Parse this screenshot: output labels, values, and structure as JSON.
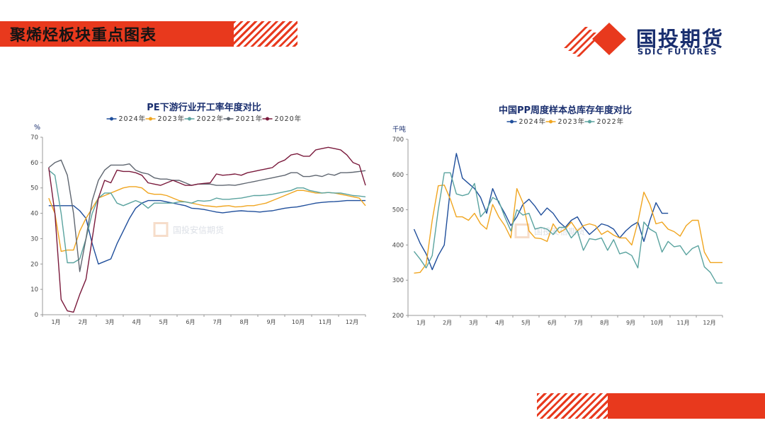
{
  "header": {
    "title": "聚烯烃板块重点图表"
  },
  "logo": {
    "cn": "国投期货",
    "en": "SDIC FUTURES"
  },
  "watermark": {
    "text": "国投安信期货"
  },
  "colors": {
    "accent": "#e8391d",
    "brand": "#1a2f6f"
  },
  "chart_data": [
    {
      "type": "line",
      "title": "PE下游行业开工率年度对比",
      "ylabel": "%",
      "ylim": [
        0,
        70
      ],
      "yticks": [
        0,
        10,
        20,
        30,
        40,
        50,
        60,
        70
      ],
      "xlim": [
        0,
        52
      ],
      "month_labels": [
        "1月",
        "2月",
        "3月",
        "4月",
        "5月",
        "6月",
        "7月",
        "8月",
        "9月",
        "10月",
        "11月",
        "12月"
      ],
      "legend_position": "top-center",
      "grid": false,
      "series": [
        {
          "name": "2024年",
          "color": "#1f4e9b",
          "x": [
            1,
            2,
            3,
            4,
            5,
            6,
            7,
            8,
            9,
            10,
            11,
            12,
            13,
            14,
            15,
            16,
            17,
            18,
            19,
            20,
            21,
            22,
            23,
            24,
            25,
            26,
            27,
            28,
            29,
            30,
            31,
            32,
            33,
            34,
            35,
            36,
            37,
            38,
            39,
            40,
            41,
            42,
            43,
            44,
            45,
            46,
            47,
            48,
            49,
            50,
            51,
            52
          ],
          "values": [
            43,
            43,
            43,
            43,
            43,
            41,
            38,
            28,
            20,
            21,
            22,
            28,
            33,
            38,
            42,
            44,
            45,
            45,
            45,
            44.5,
            44,
            43.5,
            43,
            42,
            41.8,
            41.5,
            41,
            40.5,
            40.2,
            40.5,
            40.8,
            41,
            40.8,
            40.7,
            40.5,
            40.8,
            41,
            41.5,
            42,
            42.3,
            42.5,
            43,
            43.5,
            44,
            44.3,
            44.5,
            44.6,
            44.8,
            45,
            45,
            45,
            45
          ]
        },
        {
          "name": "2023年",
          "color": "#f0a51f",
          "x": [
            1,
            2,
            3,
            4,
            5,
            6,
            7,
            8,
            9,
            10,
            11,
            12,
            13,
            14,
            15,
            16,
            17,
            18,
            19,
            20,
            21,
            22,
            23,
            24,
            25,
            26,
            27,
            28,
            29,
            30,
            31,
            32,
            33,
            34,
            35,
            36,
            37,
            38,
            39,
            40,
            41,
            42,
            43,
            44,
            45,
            46,
            47,
            48,
            49,
            50,
            51,
            52
          ],
          "values": [
            46,
            40,
            25,
            25.5,
            25.5,
            33,
            38,
            42,
            46,
            47,
            48,
            49,
            50,
            50.5,
            50.5,
            50,
            48,
            47.5,
            47.5,
            47,
            46,
            45,
            44.5,
            44,
            43.5,
            43,
            42.8,
            42.5,
            42.8,
            43,
            42.5,
            42.6,
            43,
            43,
            43.5,
            44,
            45,
            46,
            47,
            48,
            49,
            49,
            48.5,
            48,
            48,
            48.2,
            48,
            47.5,
            47,
            46.5,
            46,
            43
          ]
        },
        {
          "name": "2022年",
          "color": "#5aa39f",
          "x": [
            1,
            2,
            3,
            4,
            5,
            6,
            7,
            8,
            9,
            10,
            11,
            12,
            13,
            14,
            15,
            16,
            17,
            18,
            19,
            20,
            21,
            22,
            23,
            24,
            25,
            26,
            27,
            28,
            29,
            30,
            31,
            32,
            33,
            34,
            35,
            36,
            37,
            38,
            39,
            40,
            41,
            42,
            43,
            44,
            45,
            46,
            47,
            48,
            49,
            50,
            51,
            52
          ],
          "values": [
            57,
            55,
            40,
            20.5,
            20.5,
            22,
            30,
            40,
            46,
            48,
            48,
            44,
            43,
            44,
            45,
            44,
            42,
            44,
            44,
            44,
            44,
            44.5,
            44.5,
            44,
            45,
            44.8,
            45,
            46,
            45.5,
            45.5,
            45.8,
            46,
            46.5,
            47,
            47,
            47.2,
            47.5,
            48,
            48.5,
            49,
            50,
            50,
            49,
            48.5,
            48,
            48.2,
            48,
            48,
            47.5,
            47,
            46.8,
            46.5
          ]
        },
        {
          "name": "2021年",
          "color": "#5f6670",
          "x": [
            1,
            2,
            3,
            4,
            5,
            6,
            7,
            8,
            9,
            10,
            11,
            12,
            13,
            14,
            15,
            16,
            17,
            18,
            19,
            20,
            21,
            22,
            23,
            24,
            25,
            26,
            27,
            28,
            29,
            30,
            31,
            32,
            33,
            34,
            35,
            36,
            37,
            38,
            39,
            40,
            41,
            42,
            43,
            44,
            45,
            46,
            47,
            48,
            49,
            50,
            51,
            52
          ],
          "values": [
            58,
            60,
            61,
            55,
            40,
            17,
            30,
            45,
            53,
            57,
            59,
            59,
            59,
            59.5,
            57,
            56,
            55.5,
            54,
            53.5,
            53.5,
            53,
            53,
            52,
            51,
            51.5,
            51.5,
            51.5,
            51,
            51,
            51.2,
            51,
            51.5,
            52,
            52.5,
            53,
            53.5,
            54,
            54.5,
            55,
            56,
            56,
            54.5,
            54.5,
            55,
            54.5,
            55.5,
            55,
            56,
            56,
            56.2,
            56.5,
            56.8
          ]
        },
        {
          "name": "2020年",
          "color": "#7a1a3c",
          "x": [
            1,
            2,
            3,
            4,
            5,
            6,
            7,
            8,
            9,
            10,
            11,
            12,
            13,
            14,
            15,
            16,
            17,
            18,
            19,
            20,
            21,
            22,
            23,
            24,
            25,
            26,
            27,
            28,
            29,
            30,
            31,
            32,
            33,
            34,
            35,
            36,
            37,
            38,
            39,
            40,
            41,
            42,
            43,
            44,
            45,
            46,
            47,
            48,
            49,
            50,
            51,
            52
          ],
          "values": [
            58,
            40,
            6,
            1.5,
            1,
            8,
            14,
            30,
            46,
            53,
            52,
            57,
            56.5,
            56.5,
            56,
            55,
            52,
            51.5,
            51,
            52,
            53,
            52,
            51,
            51,
            51.5,
            51.8,
            52,
            55.5,
            55,
            55.2,
            55.5,
            55,
            56,
            56.5,
            57,
            57.5,
            58,
            60,
            61,
            63,
            63.5,
            62.5,
            62.5,
            65,
            65.5,
            66,
            65.5,
            65,
            63,
            60,
            59,
            51
          ]
        }
      ]
    },
    {
      "type": "line",
      "title": "中国PP周度样本总库存年度对比",
      "ylabel": "千吨",
      "ylim": [
        200,
        700
      ],
      "yticks": [
        200,
        300,
        400,
        500,
        600,
        700
      ],
      "xlim": [
        0,
        52
      ],
      "month_labels": [
        "1月",
        "2月",
        "3月",
        "4月",
        "5月",
        "6月",
        "7月",
        "8月",
        "9月",
        "10月",
        "11月",
        "12月"
      ],
      "legend_position": "top-center",
      "grid": false,
      "series": [
        {
          "name": "2024年",
          "color": "#1f4e9b",
          "x": [
            1,
            2,
            3,
            4,
            5,
            6,
            7,
            8,
            9,
            10,
            11,
            12,
            13,
            14,
            15,
            16,
            17,
            18,
            19,
            20,
            21,
            22,
            23,
            24,
            25,
            26,
            27,
            28,
            29,
            30,
            31,
            32,
            33,
            34,
            35,
            36,
            37,
            38,
            39,
            40,
            41,
            42,
            43
          ],
          "values": [
            445,
            405,
            375,
            330,
            370,
            400,
            560,
            660,
            590,
            575,
            560,
            535,
            490,
            560,
            520,
            490,
            455,
            480,
            515,
            530,
            510,
            485,
            505,
            490,
            465,
            450,
            470,
            480,
            450,
            430,
            445,
            460,
            455,
            445,
            420,
            440,
            455,
            465,
            410,
            470,
            520,
            490,
            490
          ]
        },
        {
          "name": "2023年",
          "color": "#f0a51f",
          "x": [
            1,
            2,
            3,
            4,
            5,
            6,
            7,
            8,
            9,
            10,
            11,
            12,
            13,
            14,
            15,
            16,
            17,
            18,
            19,
            20,
            21,
            22,
            23,
            24,
            25,
            26,
            27,
            28,
            29,
            30,
            31,
            32,
            33,
            34,
            35,
            36,
            37,
            38,
            39,
            40,
            41,
            42,
            43,
            44,
            45,
            46,
            47,
            48,
            49,
            50,
            51,
            52
          ],
          "values": [
            320,
            322,
            345,
            470,
            568,
            570,
            530,
            480,
            480,
            470,
            490,
            460,
            445,
            515,
            480,
            455,
            420,
            560,
            520,
            440,
            420,
            418,
            410,
            460,
            435,
            445,
            465,
            440,
            455,
            460,
            455,
            430,
            440,
            428,
            420,
            420,
            400,
            465,
            550,
            515,
            460,
            465,
            445,
            438,
            425,
            455,
            470,
            470,
            380,
            350,
            350,
            350
          ]
        },
        {
          "name": "2022年",
          "color": "#5aa39f",
          "x": [
            1,
            2,
            3,
            4,
            5,
            6,
            7,
            8,
            9,
            10,
            11,
            12,
            13,
            14,
            15,
            16,
            17,
            18,
            19,
            20,
            21,
            22,
            23,
            24,
            25,
            26,
            27,
            28,
            29,
            30,
            31,
            32,
            33,
            34,
            35,
            36,
            37,
            38,
            39,
            40,
            41,
            42,
            43,
            44,
            45,
            46,
            47,
            48,
            49,
            50,
            51,
            52
          ],
          "values": [
            382,
            360,
            335,
            370,
            500,
            605,
            605,
            545,
            540,
            545,
            575,
            480,
            500,
            535,
            525,
            480,
            440,
            500,
            485,
            490,
            445,
            450,
            445,
            430,
            450,
            450,
            420,
            440,
            385,
            418,
            415,
            420,
            385,
            415,
            375,
            380,
            370,
            335,
            465,
            445,
            435,
            380,
            410,
            395,
            398,
            372,
            390,
            398,
            338,
            322,
            292,
            292
          ]
        }
      ]
    }
  ]
}
